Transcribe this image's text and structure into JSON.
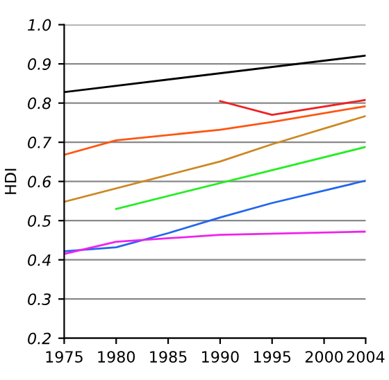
{
  "chart_data": {
    "type": "line",
    "ylabel": "HDI",
    "xlim": [
      1975,
      2004
    ],
    "xticks": [
      1975,
      1980,
      1985,
      1990,
      1995,
      2000,
      2004
    ],
    "ylim": [
      0.2,
      1.0
    ],
    "yticks": [
      {
        "value": 0.2,
        "label": "0.2"
      },
      {
        "value": 0.3,
        "label": "0.3"
      },
      {
        "value": 0.4,
        "label": "0.4"
      },
      {
        "value": 0.5,
        "label": "0.5"
      },
      {
        "value": 0.6,
        "label": "0.6"
      },
      {
        "value": 0.7,
        "label": "0.7"
      },
      {
        "value": 0.8,
        "label": "0.8"
      },
      {
        "value": 0.9,
        "label": "0.9"
      },
      {
        "value": 1.0,
        "label": "1.0"
      }
    ],
    "grid": "y",
    "marker": "none",
    "line_style": "solid",
    "series": [
      {
        "color": "#000000",
        "x": [
          1975,
          2004
        ],
        "values": [
          0.828,
          0.921
        ]
      },
      {
        "color": "#ee2222",
        "x": [
          1990,
          1995,
          2004
        ],
        "values": [
          0.805,
          0.77,
          0.808
        ]
      },
      {
        "color": "#ff5511",
        "x": [
          1975,
          1980,
          1990,
          1995,
          2004
        ],
        "values": [
          0.668,
          0.705,
          0.732,
          0.752,
          0.792
        ]
      },
      {
        "color": "#cc8822",
        "x": [
          1975,
          1990,
          1995,
          2004
        ],
        "values": [
          0.548,
          0.651,
          0.695,
          0.767
        ]
      },
      {
        "color": "#22ee22",
        "x": [
          1980,
          2004
        ],
        "values": [
          0.53,
          0.688
        ]
      },
      {
        "color": "#2266ee",
        "x": [
          1975,
          1980,
          1985,
          1990,
          1995,
          2004
        ],
        "values": [
          0.422,
          0.432,
          0.468,
          0.508,
          0.545,
          0.602
        ]
      },
      {
        "color": "#ee22ee",
        "x": [
          1975,
          1980,
          1990,
          2004
        ],
        "values": [
          0.415,
          0.446,
          0.464,
          0.472
        ]
      }
    ]
  }
}
